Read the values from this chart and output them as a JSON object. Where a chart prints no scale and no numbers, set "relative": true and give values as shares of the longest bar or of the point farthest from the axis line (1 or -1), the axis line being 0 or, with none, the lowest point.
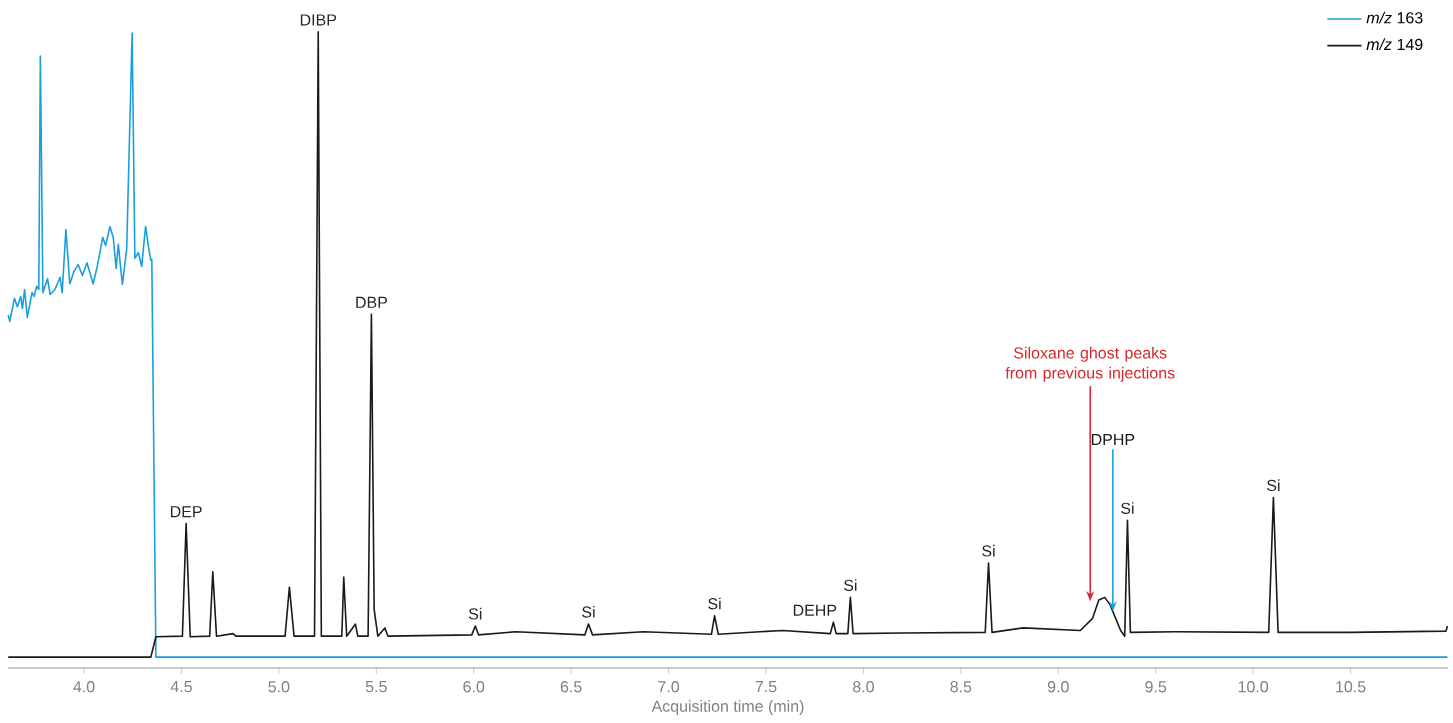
{
  "chart_data": {
    "type": "line",
    "relative": true,
    "xlabel": "Acquisition time (min)",
    "xlim": [
      3.61,
      11.0
    ],
    "xticks": [
      {
        "value": 4,
        "label": "4.0"
      },
      {
        "value": 4.5,
        "label": "4.5"
      },
      {
        "value": 5,
        "label": "5.0"
      },
      {
        "value": 5.5,
        "label": "5.5"
      },
      {
        "value": 6,
        "label": "6.0"
      },
      {
        "value": 6.5,
        "label": "6.5"
      },
      {
        "value": 7,
        "label": "7.0"
      },
      {
        "value": 7.5,
        "label": "7.5"
      },
      {
        "value": 8,
        "label": "8.0"
      },
      {
        "value": 8.5,
        "label": "8.5"
      },
      {
        "value": 9,
        "label": "9.0"
      },
      {
        "value": 9.5,
        "label": "9.5"
      },
      {
        "value": 10,
        "label": "10.0"
      },
      {
        "value": 10.5,
        "label": "10.5"
      }
    ],
    "legend": "top right",
    "series": [
      {
        "name": "*m/z* 163",
        "color": "#1a9fdb",
        "x": [
          3.611,
          3.619,
          3.643,
          3.658,
          3.675,
          3.684,
          3.695,
          3.709,
          3.733,
          3.744,
          3.757,
          3.768,
          3.776,
          3.789,
          3.813,
          3.826,
          3.851,
          3.877,
          3.888,
          3.907,
          3.927,
          3.948,
          3.97,
          3.992,
          4.015,
          4.047,
          4.068,
          4.096,
          4.111,
          4.133,
          4.15,
          4.165,
          4.176,
          4.197,
          4.219,
          4.247,
          4.261,
          4.279,
          4.296,
          4.316,
          4.33,
          4.343,
          4.348,
          4.369,
          10.997
        ],
        "values": [
          0.555,
          0.545,
          0.581,
          0.568,
          0.584,
          0.565,
          0.595,
          0.551,
          0.59,
          0.584,
          0.6,
          0.595,
          0.962,
          0.59,
          0.612,
          0.587,
          0.595,
          0.614,
          0.59,
          0.689,
          0.604,
          0.623,
          0.634,
          0.617,
          0.637,
          0.604,
          0.631,
          0.677,
          0.664,
          0.694,
          0.677,
          0.628,
          0.666,
          0.603,
          0.658,
          0.998,
          0.644,
          0.653,
          0.631,
          0.694,
          0.664,
          0.641,
          0.642,
          0.017,
          0.017
        ]
      },
      {
        "name": "*m/z* 149",
        "color": "#1a1a1a",
        "x": [
          3.611,
          4.343,
          4.369,
          4.505,
          4.524,
          4.545,
          4.645,
          4.661,
          4.68,
          4.765,
          4.78,
          5.032,
          5.054,
          5.078,
          5.183,
          5.202,
          5.218,
          5.323,
          5.333,
          5.348,
          5.393,
          5.405,
          5.458,
          5.475,
          5.489,
          5.508,
          5.544,
          5.56,
          5.99,
          6.008,
          6.025,
          6.217,
          6.57,
          6.589,
          6.61,
          6.87,
          7.22,
          7.236,
          7.255,
          7.585,
          7.83,
          7.846,
          7.86,
          7.92,
          7.933,
          7.947,
          8.2,
          8.625,
          8.642,
          8.66,
          8.819,
          9.113,
          9.176,
          9.208,
          9.238,
          9.265,
          9.32,
          9.341,
          9.355,
          9.37,
          9.6,
          10.08,
          10.104,
          10.128,
          10.5,
          10.99,
          10.997
        ],
        "values": [
          0.017,
          0.017,
          0.049,
          0.05,
          0.227,
          0.049,
          0.05,
          0.151,
          0.05,
          0.054,
          0.05,
          0.05,
          0.127,
          0.05,
          0.05,
          1,
          0.05,
          0.05,
          0.143,
          0.05,
          0.069,
          0.05,
          0.05,
          0.556,
          0.092,
          0.05,
          0.063,
          0.05,
          0.052,
          0.066,
          0.052,
          0.057,
          0.052,
          0.069,
          0.052,
          0.057,
          0.053,
          0.082,
          0.053,
          0.059,
          0.054,
          0.072,
          0.054,
          0.054,
          0.111,
          0.054,
          0.055,
          0.056,
          0.165,
          0.056,
          0.063,
          0.059,
          0.078,
          0.107,
          0.111,
          0.1,
          0.059,
          0.05,
          0.232,
          0.056,
          0.057,
          0.056,
          0.268,
          0.056,
          0.056,
          0.058,
          0.066
        ]
      }
    ],
    "annotations": [
      {
        "text": "DEP",
        "x": 4.524,
        "y": 0.227
      },
      {
        "text": "DIBP",
        "x": 5.202,
        "y": 1
      },
      {
        "text": "DBP",
        "x": 5.475,
        "y": 0.556
      },
      {
        "text": "Si",
        "x": 6.008,
        "y": 0.066
      },
      {
        "text": "Si",
        "x": 6.589,
        "y": 0.069
      },
      {
        "text": "Si",
        "x": 7.236,
        "y": 0.082
      },
      {
        "text": "DEHP",
        "x": 7.846,
        "y": 0.072
      },
      {
        "text": "Si",
        "x": 7.933,
        "y": 0.111
      },
      {
        "text": "Si",
        "x": 8.642,
        "y": 0.165
      },
      "DPHP",
      {
        "text": "Si",
        "x": 9.355,
        "y": 0.232
      },
      {
        "text": "Si",
        "x": 10.104,
        "y": 0.268
      },
      "Siloxane ghost peaks from previous injections"
    ]
  }
}
